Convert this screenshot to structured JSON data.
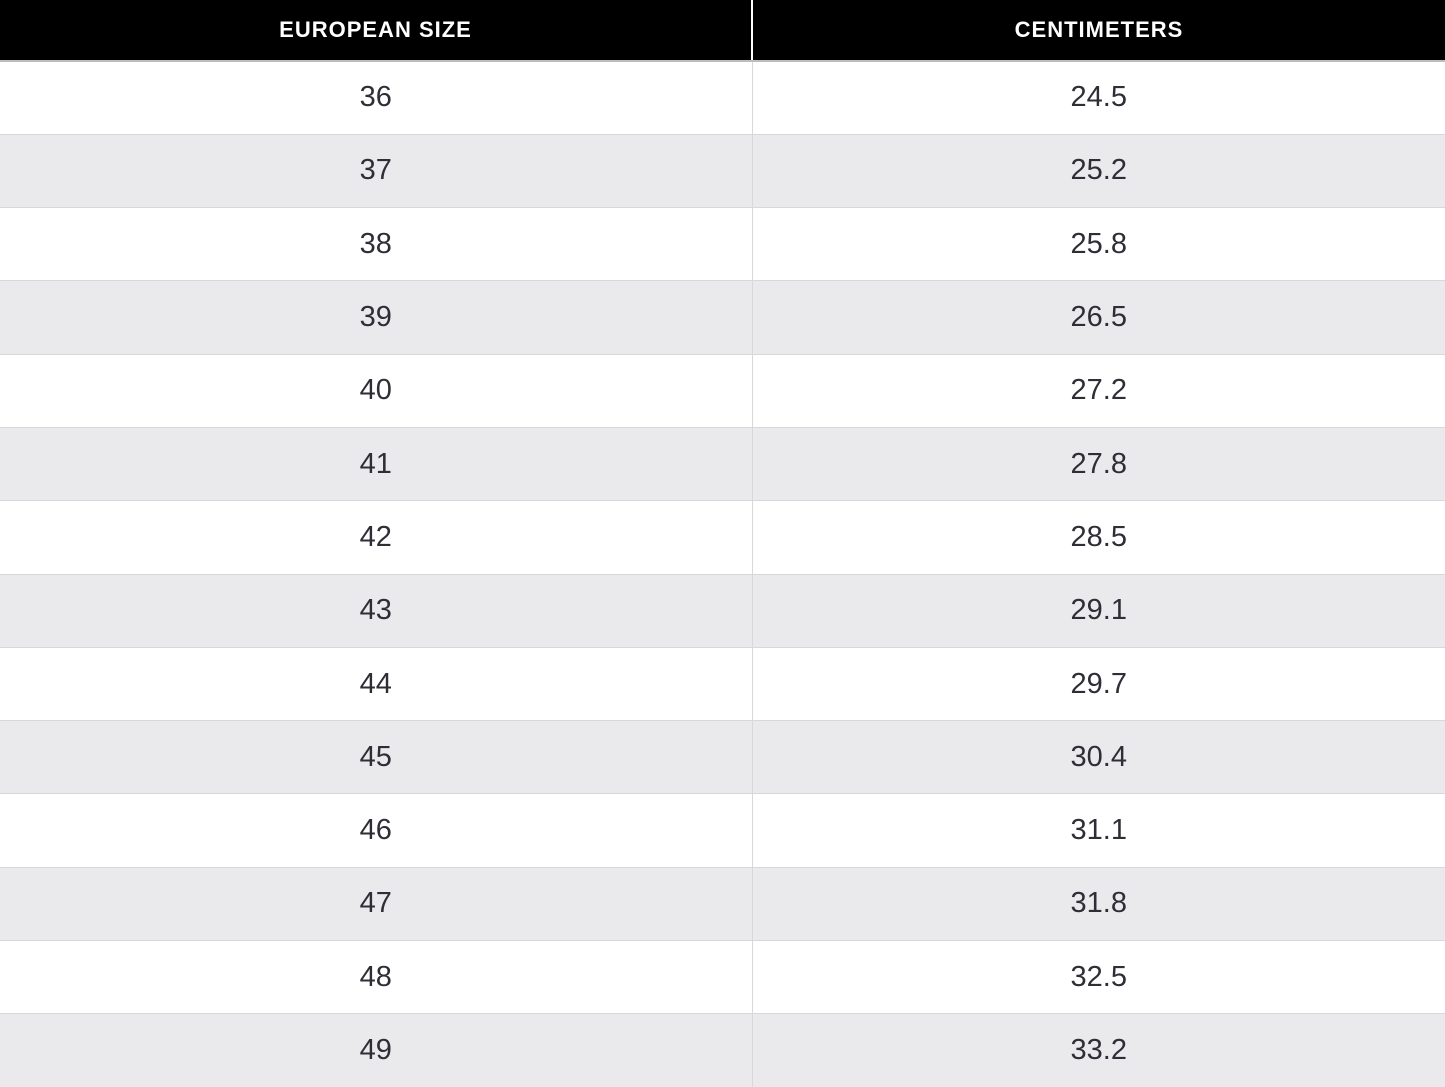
{
  "table": {
    "headers": [
      "EUROPEAN SIZE",
      "CENTIMETERS"
    ],
    "rows": [
      [
        "36",
        "24.5"
      ],
      [
        "37",
        "25.2"
      ],
      [
        "38",
        "25.8"
      ],
      [
        "39",
        "26.5"
      ],
      [
        "40",
        "27.2"
      ],
      [
        "41",
        "27.8"
      ],
      [
        "42",
        "28.5"
      ],
      [
        "43",
        "29.1"
      ],
      [
        "44",
        "29.7"
      ],
      [
        "45",
        "30.4"
      ],
      [
        "46",
        "31.1"
      ],
      [
        "47",
        "31.8"
      ],
      [
        "48",
        "32.5"
      ],
      [
        "49",
        "33.2"
      ]
    ]
  },
  "chart_data": {
    "type": "table",
    "columns": [
      "EUROPEAN SIZE",
      "CENTIMETERS"
    ],
    "rows": [
      [
        36,
        24.5
      ],
      [
        37,
        25.2
      ],
      [
        38,
        25.8
      ],
      [
        39,
        26.5
      ],
      [
        40,
        27.2
      ],
      [
        41,
        27.8
      ],
      [
        42,
        28.5
      ],
      [
        43,
        29.1
      ],
      [
        44,
        29.7
      ],
      [
        45,
        30.4
      ],
      [
        46,
        31.1
      ],
      [
        47,
        31.8
      ],
      [
        48,
        32.5
      ],
      [
        49,
        33.2
      ]
    ]
  },
  "colors": {
    "header_bg": "#000000",
    "header_text": "#ffffff",
    "row_bg": "#ffffff",
    "row_alt_bg": "#eaeaec",
    "border": "#d8d8da",
    "text": "#2e2e36"
  }
}
